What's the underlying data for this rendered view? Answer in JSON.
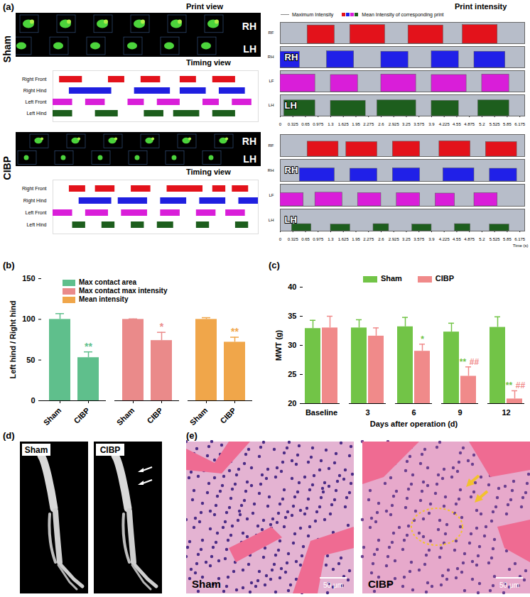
{
  "panel_labels": [
    "(a)",
    "(b)",
    "(c)",
    "(d)",
    "(e)"
  ],
  "panel_a": {
    "print_view": {
      "title": "Print view",
      "labels": [
        "RH",
        "LH"
      ]
    }
  },
  "chart_data": [
    {
      "group": "Sham",
      "type": "timeline",
      "title": "Timing view",
      "categories": [
        "Right Front",
        "Right Hind",
        "Left Front",
        "Left Hind"
      ],
      "colors": [
        "#e3121b",
        "#1f1fe0",
        "#d91ed9",
        "#1d5e1d"
      ],
      "intervals": [
        [
          [
            0.2,
            0.9
          ],
          [
            1.7,
            2.2
          ],
          [
            2.7,
            3.3
          ],
          [
            3.9,
            4.4
          ],
          [
            4.9,
            5.6
          ]
        ],
        [
          [
            0.5,
            1.8
          ],
          [
            2.5,
            3.6
          ],
          [
            3.9,
            4.7
          ],
          [
            5.1,
            5.9
          ]
        ],
        [
          [
            0.0,
            0.6
          ],
          [
            1.0,
            1.6
          ],
          [
            2.3,
            2.8
          ],
          [
            3.2,
            3.9
          ],
          [
            4.6,
            5.1
          ],
          [
            5.5,
            6.1
          ]
        ],
        [
          [
            0.0,
            0.6
          ],
          [
            1.3,
            2.0
          ],
          [
            2.8,
            3.4
          ],
          [
            3.7,
            4.5
          ],
          [
            4.9,
            5.6
          ]
        ]
      ],
      "xlim": [
        0,
        6.3
      ],
      "tick_labels": "y"
    },
    {
      "group": "Sham",
      "type": "intensity",
      "title": "Print intensity",
      "legend_items": [
        "Maximum Intensity",
        "Mean Intensity of corresponding print"
      ],
      "categories": [
        "RF",
        "RH",
        "LF",
        "LH"
      ],
      "colors": [
        "#e3121b",
        "#2020e8",
        "#d91ed9",
        "#1d5e1d"
      ],
      "highlight": [
        "RH",
        "LH"
      ],
      "prints": [
        [
          [
            0.7,
            1.4,
            215
          ],
          [
            1.8,
            2.7,
            220
          ],
          [
            3.3,
            4.2,
            215
          ],
          [
            4.7,
            5.6,
            220
          ]
        ],
        [
          [
            0.0,
            0.5,
            190
          ],
          [
            1.2,
            1.9,
            195
          ],
          [
            2.6,
            3.3,
            190
          ],
          [
            3.9,
            4.6,
            195
          ],
          [
            5.0,
            5.8,
            190
          ]
        ],
        [
          [
            0.0,
            0.9,
            205
          ],
          [
            1.3,
            2.0,
            200
          ],
          [
            2.6,
            3.5,
            205
          ],
          [
            3.9,
            4.8,
            200
          ],
          [
            5.2,
            5.9,
            205
          ]
        ],
        [
          [
            0.1,
            0.9,
            185
          ],
          [
            1.3,
            2.2,
            180
          ],
          [
            2.5,
            3.5,
            185
          ],
          [
            3.9,
            4.6,
            180
          ],
          [
            5.1,
            5.9,
            185
          ]
        ]
      ],
      "xlim": [
        0,
        6.3
      ],
      "xticks": [
        0,
        0.325,
        0.65,
        0.975,
        1.3,
        1.625,
        1.95,
        2.275,
        2.6,
        2.925,
        3.25,
        3.575,
        3.9,
        4.225,
        4.55,
        4.875,
        5.2,
        5.525,
        5.85,
        6.175
      ],
      "ylim": [
        0,
        250
      ],
      "tick_labels": "x"
    },
    {
      "group": "CIBP",
      "type": "timeline",
      "title": "Timing view",
      "categories": [
        "Right Front",
        "Right Hind",
        "Left Front",
        "Left Hind"
      ],
      "colors": [
        "#e3121b",
        "#1f1fe0",
        "#d91ed9",
        "#1d5e1d"
      ],
      "intervals": [
        [
          [
            0.5,
            1.0
          ],
          [
            1.3,
            1.9
          ],
          [
            2.4,
            3.0
          ],
          [
            3.5,
            4.6
          ],
          [
            4.9,
            5.3
          ],
          [
            5.5,
            6.0
          ]
        ],
        [
          [
            0.8,
            1.8
          ],
          [
            2.0,
            2.9
          ],
          [
            3.3,
            4.1
          ],
          [
            4.5,
            5.3
          ],
          [
            5.7,
            6.3
          ]
        ],
        [
          [
            0.0,
            0.6
          ],
          [
            1.0,
            1.7
          ],
          [
            2.1,
            2.9
          ],
          [
            3.3,
            3.9
          ],
          [
            4.4,
            5.0
          ],
          [
            5.3,
            5.9
          ]
        ],
        [
          [
            0.6,
            1.0
          ],
          [
            1.5,
            1.9
          ],
          [
            2.4,
            2.8
          ],
          [
            3.2,
            3.7
          ],
          [
            4.4,
            4.8
          ],
          [
            5.6,
            6.0
          ]
        ]
      ],
      "xlim": [
        0,
        6.3
      ],
      "tick_labels": "y"
    },
    {
      "group": "CIBP",
      "type": "intensity",
      "xlabel": "Time (s)",
      "categories": [
        "RF",
        "RH",
        "LF",
        "LH"
      ],
      "colors": [
        "#e3121b",
        "#2020e8",
        "#d91ed9",
        "#1d5e1d"
      ],
      "highlight": [
        "RH",
        "LH"
      ],
      "prints": [
        [
          [
            0.7,
            1.5,
            170
          ],
          [
            1.7,
            2.5,
            165
          ],
          [
            2.9,
            3.6,
            170
          ],
          [
            4.1,
            4.9,
            175
          ],
          [
            5.3,
            6.1,
            165
          ]
        ],
        [
          [
            0.5,
            1.4,
            150
          ],
          [
            1.8,
            2.5,
            145
          ],
          [
            2.9,
            3.6,
            150
          ],
          [
            4.2,
            5.0,
            150
          ],
          [
            5.4,
            6.1,
            145
          ]
        ],
        [
          [
            0.0,
            0.6,
            150
          ],
          [
            0.9,
            1.6,
            155
          ],
          [
            2.0,
            2.6,
            150
          ],
          [
            3.0,
            3.6,
            150
          ],
          [
            4.0,
            4.5,
            145
          ],
          [
            5.0,
            5.6,
            150
          ]
        ],
        [
          [
            0.3,
            0.8,
            80
          ],
          [
            1.3,
            1.8,
            75
          ],
          [
            2.4,
            2.8,
            80
          ],
          [
            3.4,
            3.9,
            75
          ],
          [
            4.5,
            4.9,
            80
          ],
          [
            5.4,
            5.9,
            75
          ]
        ]
      ],
      "xlim": [
        0,
        6.3
      ],
      "xticks": [
        0,
        0.325,
        0.65,
        0.975,
        1.3,
        1.625,
        1.95,
        2.275,
        2.6,
        2.925,
        3.25,
        3.575,
        3.9,
        4.225,
        4.55,
        4.875,
        5.2,
        5.525,
        5.85,
        6.175
      ],
      "ylim": [
        0,
        250
      ],
      "tick_labels": "x"
    },
    {
      "type": "bar",
      "categories": [
        "Sham",
        "CIBP"
      ],
      "ylabel": "Left hind / Right hind",
      "ylim": [
        0,
        150
      ],
      "yticks": [
        0,
        50,
        100,
        150
      ],
      "legend": "top-left",
      "series": [
        {
          "name": "Max contact area",
          "color": "#5fbf8c",
          "values": [
            100,
            53
          ],
          "errors": [
            7,
            7
          ],
          "significance": [
            null,
            "**"
          ]
        },
        {
          "name": "Max contact max intensity",
          "color": "#ea8a8a",
          "values": [
            100,
            74
          ],
          "errors": [
            0.5,
            10
          ],
          "significance": [
            null,
            "*"
          ]
        },
        {
          "name": "Mean intensity",
          "color": "#f0a64a",
          "values": [
            100,
            72
          ],
          "errors": [
            2,
            6
          ],
          "significance": [
            null,
            "**"
          ]
        }
      ]
    },
    {
      "type": "bar",
      "categories": [
        "Baseline",
        "3",
        "6",
        "9",
        "12"
      ],
      "xlabel": "Days after operation (d)",
      "ylabel": "MWT (g)",
      "ylim": [
        20,
        40
      ],
      "yticks": [
        20,
        25,
        30,
        35,
        40
      ],
      "legend": "top",
      "series": [
        {
          "name": "Sham",
          "color": "#72c447",
          "values": [
            32.9,
            33.0,
            33.2,
            32.3,
            33.1
          ],
          "errors": [
            1.4,
            1.4,
            1.6,
            1.5,
            1.8
          ]
        },
        {
          "name": "CIBP",
          "color": "#f08a8a",
          "values": [
            33.0,
            31.6,
            29.0,
            24.7,
            20.8
          ],
          "errors": [
            2.0,
            1.4,
            1.2,
            1.6,
            1.4
          ],
          "significance": [
            {
              "labels": [
                null,
                null,
                "*",
                "**",
                "**"
              ],
              "color": "#72c447"
            },
            {
              "labels": [
                null,
                null,
                null,
                "##",
                "##"
              ],
              "color": "#f08a8a"
            }
          ]
        }
      ]
    }
  ],
  "panel_d": {
    "labels": [
      "Sham",
      "CIBP"
    ]
  },
  "panel_e": {
    "labels": [
      "Sham",
      "CIBP"
    ],
    "scale_bar": "50 μm"
  }
}
